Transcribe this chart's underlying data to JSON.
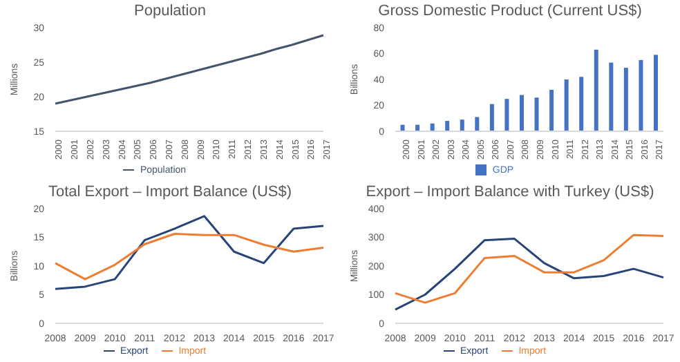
{
  "chart_data": [
    {
      "type": "line",
      "title": "Population",
      "ylabel": "Millions",
      "categories": [
        "2000",
        "2001",
        "2002",
        "2003",
        "2004",
        "2005",
        "2006",
        "2007",
        "2008",
        "2009",
        "2010",
        "2011",
        "2012",
        "2013",
        "2014",
        "2015",
        "2016",
        "2017"
      ],
      "series": [
        {
          "name": "Population",
          "color": "#44546a",
          "values": [
            19.0,
            19.5,
            20.0,
            20.5,
            21.0,
            21.5,
            22.0,
            22.6,
            23.2,
            23.8,
            24.4,
            25.0,
            25.6,
            26.2,
            26.9,
            27.5,
            28.2,
            28.9
          ]
        }
      ],
      "ylim": [
        15,
        30
      ],
      "yticks": [
        15,
        20,
        25,
        30
      ],
      "grid": false,
      "legend": "bottom",
      "marker": "none"
    },
    {
      "type": "bar",
      "title": "Gross Domestic Product (Current US$)",
      "ylabel": "Billions",
      "categories": [
        "2000",
        "2001",
        "2002",
        "2003",
        "2004",
        "2005",
        "2006",
        "2007",
        "2008",
        "2009",
        "2010",
        "2011",
        "2012",
        "2013",
        "2014",
        "2015",
        "2016",
        "2017"
      ],
      "series": [
        {
          "name": "GDP",
          "color": "#4472c4",
          "values": [
            5,
            5,
            6,
            8,
            9,
            11,
            21,
            25,
            28,
            26,
            32,
            40,
            42,
            63,
            53,
            49,
            55,
            59
          ]
        }
      ],
      "ylim": [
        0,
        80
      ],
      "yticks": [
        0,
        20,
        40,
        60,
        80
      ],
      "grid": false,
      "legend": "bottom"
    },
    {
      "type": "line",
      "title": "Total Export – Import Balance (US$)",
      "ylabel": "Billions",
      "categories": [
        "2008",
        "2009",
        "2010",
        "2011",
        "2012",
        "2013",
        "2014",
        "2015",
        "2016",
        "2017"
      ],
      "series": [
        {
          "name": "Export",
          "color": "#264478",
          "values": [
            6.0,
            6.4,
            7.7,
            14.5,
            16.5,
            18.7,
            12.5,
            10.5,
            16.5,
            17.0
          ]
        },
        {
          "name": "Import",
          "color": "#ed7d31",
          "values": [
            10.5,
            7.7,
            10.2,
            13.8,
            15.6,
            15.4,
            15.4,
            13.7,
            12.5,
            13.2
          ]
        }
      ],
      "ylim": [
        0,
        20
      ],
      "yticks": [
        0,
        5,
        10,
        15,
        20
      ],
      "grid": false,
      "legend": "bottom",
      "marker": "none"
    },
    {
      "type": "line",
      "title": "Export – Import Balance with Turkey (US$)",
      "ylabel": "Millions",
      "categories": [
        "2008",
        "2009",
        "2010",
        "2011",
        "2012",
        "2013",
        "2014",
        "2015",
        "2016",
        "2017"
      ],
      "series": [
        {
          "name": "Export",
          "color": "#264478",
          "values": [
            48,
            100,
            190,
            290,
            295,
            210,
            157,
            165,
            190,
            160
          ]
        },
        {
          "name": "Import",
          "color": "#ed7d31",
          "values": [
            105,
            72,
            105,
            228,
            235,
            178,
            178,
            220,
            308,
            305
          ]
        }
      ],
      "ylim": [
        0,
        400
      ],
      "yticks": [
        0,
        100,
        200,
        300,
        400
      ],
      "grid": false,
      "legend": "bottom",
      "marker": "none"
    }
  ]
}
